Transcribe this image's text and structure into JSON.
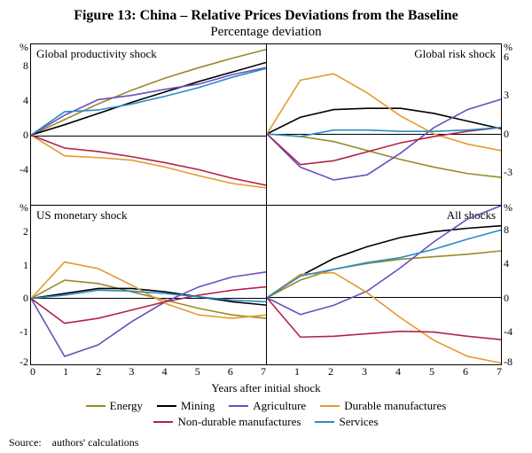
{
  "figure_title": "Figure 13: China – Relative Prices Deviations from the Baseline",
  "figure_subtitle": "Percentage deviation",
  "xlabel": "Years after initial shock",
  "source": "Source: authors' calculations",
  "x_domain": [
    0,
    7
  ],
  "x_ticks": [
    0,
    1,
    2,
    3,
    4,
    5,
    6,
    7
  ],
  "series_meta": [
    {
      "key": "energy",
      "label": "Energy",
      "color": "#9a8a2a"
    },
    {
      "key": "mining",
      "label": "Mining",
      "color": "#000000"
    },
    {
      "key": "agriculture",
      "label": "Agriculture",
      "color": "#6a4fbf"
    },
    {
      "key": "durables",
      "label": "Durable manufactures",
      "color": "#e59a2e"
    },
    {
      "key": "nondurables",
      "label": "Non-durable manufactures",
      "color": "#b0234a"
    },
    {
      "key": "services",
      "label": "Services",
      "color": "#2b8bc7"
    }
  ],
  "panels": {
    "productivity": {
      "title": "Global productivity shock",
      "title_side": "left",
      "y_domain": [
        -8,
        10.5
      ],
      "y_ticks_labels": [
        "%",
        "8",
        "4",
        "0",
        "-4",
        ""
      ],
      "y_side": "left",
      "y_tick_offsets": [
        0.02,
        0.135,
        0.353,
        0.567,
        0.783,
        0.98
      ],
      "series": {
        "energy": [
          0,
          1.8,
          3.6,
          5.2,
          6.6,
          7.8,
          8.9,
          9.9
        ],
        "mining": [
          0,
          1.2,
          2.5,
          3.8,
          5.0,
          6.2,
          7.3,
          8.4
        ],
        "agriculture": [
          0,
          2.3,
          4.1,
          4.6,
          5.3,
          5.9,
          7.0,
          7.8
        ],
        "durables": [
          0,
          -2.4,
          -2.6,
          -2.9,
          -3.7,
          -4.7,
          -5.6,
          -6.1
        ],
        "nondurables": [
          0,
          -1.5,
          -1.9,
          -2.5,
          -3.2,
          -4.0,
          -5.0,
          -5.8
        ],
        "services": [
          0,
          2.7,
          2.9,
          3.6,
          4.5,
          5.5,
          6.7,
          7.7
        ]
      }
    },
    "risk": {
      "title": "Global risk shock",
      "title_side": "right",
      "y_domain": [
        -5.5,
        7
      ],
      "y_ticks_labels": [
        "%",
        "6",
        "3",
        "0",
        "-3",
        ""
      ],
      "y_side": "right",
      "y_tick_offsets": [
        0.02,
        0.08,
        0.32,
        0.56,
        0.8,
        0.98
      ],
      "series": {
        "energy": [
          0,
          -0.2,
          -0.6,
          -1.3,
          -2.0,
          -2.6,
          -3.1,
          -3.4
        ],
        "mining": [
          0,
          1.3,
          1.9,
          2.0,
          2.0,
          1.6,
          1.0,
          0.4
        ],
        "agriculture": [
          0,
          -2.6,
          -3.6,
          -3.2,
          -1.5,
          0.5,
          1.9,
          2.7
        ],
        "durables": [
          0,
          4.2,
          4.7,
          3.2,
          1.4,
          0.0,
          -0.8,
          -1.3
        ],
        "nondurables": [
          0,
          -2.4,
          -2.1,
          -1.4,
          -0.7,
          -0.2,
          0.2,
          0.5
        ],
        "services": [
          0,
          -0.2,
          0.3,
          0.3,
          0.2,
          0.2,
          0.3,
          0.5
        ]
      }
    },
    "monetary": {
      "title": "US monetary shock",
      "title_side": "left",
      "y_domain": [
        -2,
        2.8
      ],
      "y_ticks_labels": [
        "%",
        "2",
        "1",
        "0",
        "-1",
        "-2"
      ],
      "y_side": "left",
      "y_tick_offsets": [
        0.02,
        0.168,
        0.376,
        0.583,
        0.79,
        0.98
      ],
      "series": {
        "energy": [
          0,
          0.55,
          0.45,
          0.2,
          -0.05,
          -0.3,
          -0.5,
          -0.6
        ],
        "mining": [
          0,
          0.15,
          0.3,
          0.3,
          0.2,
          0.05,
          -0.1,
          -0.2
        ],
        "agriculture": [
          0,
          -1.75,
          -1.4,
          -0.7,
          -0.1,
          0.35,
          0.65,
          0.8
        ],
        "durables": [
          0,
          1.1,
          0.9,
          0.4,
          -0.15,
          -0.5,
          -0.6,
          -0.5
        ],
        "nondurables": [
          0,
          -0.75,
          -0.6,
          -0.35,
          -0.1,
          0.1,
          0.25,
          0.35
        ],
        "services": [
          0,
          0.1,
          0.25,
          0.22,
          0.15,
          0.05,
          -0.05,
          -0.1
        ]
      }
    },
    "all": {
      "title": "All shocks",
      "title_side": "right",
      "y_domain": [
        -8,
        11
      ],
      "y_ticks_labels": [
        "%",
        "8",
        "4",
        "0",
        "-4",
        "-8"
      ],
      "y_side": "right",
      "y_tick_offsets": [
        0.02,
        0.158,
        0.368,
        0.579,
        0.79,
        0.98
      ],
      "series": {
        "energy": [
          0,
          2.1,
          3.4,
          4.1,
          4.6,
          4.9,
          5.2,
          5.6
        ],
        "mining": [
          0,
          2.6,
          4.7,
          6.1,
          7.2,
          7.9,
          8.3,
          8.6
        ],
        "agriculture": [
          0,
          -2.0,
          -0.9,
          0.8,
          3.6,
          6.7,
          9.4,
          11.0
        ],
        "durables": [
          0,
          2.8,
          3.0,
          0.6,
          -2.4,
          -5.1,
          -7.0,
          -7.8
        ],
        "nondurables": [
          0,
          -4.7,
          -4.6,
          -4.3,
          -4.0,
          -4.1,
          -4.6,
          -5.0
        ],
        "services": [
          0,
          2.6,
          3.4,
          4.2,
          4.8,
          5.8,
          7.0,
          8.1
        ]
      }
    }
  },
  "style": {
    "font_family": "Times New Roman",
    "title_fontsize": 16,
    "subtitle_fontsize": 15,
    "tick_fontsize": 12,
    "legend_fontsize": 13,
    "line_width": 1.6,
    "background": "#ffffff",
    "axis_color": "#000000"
  }
}
